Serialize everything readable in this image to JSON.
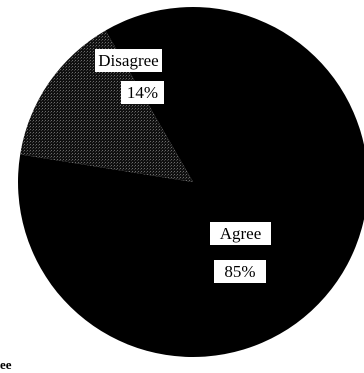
{
  "chart_data": {
    "type": "pie",
    "slices": [
      {
        "label": "Agree",
        "value": 85,
        "value_label": "85%",
        "color": "#000000"
      },
      {
        "label": "Disagree",
        "value": 14,
        "value_label": "14%",
        "color": "#1e1e1e"
      }
    ],
    "start_angle_deg": -120,
    "direction": "clockwise",
    "legend_fragment": "ee"
  }
}
